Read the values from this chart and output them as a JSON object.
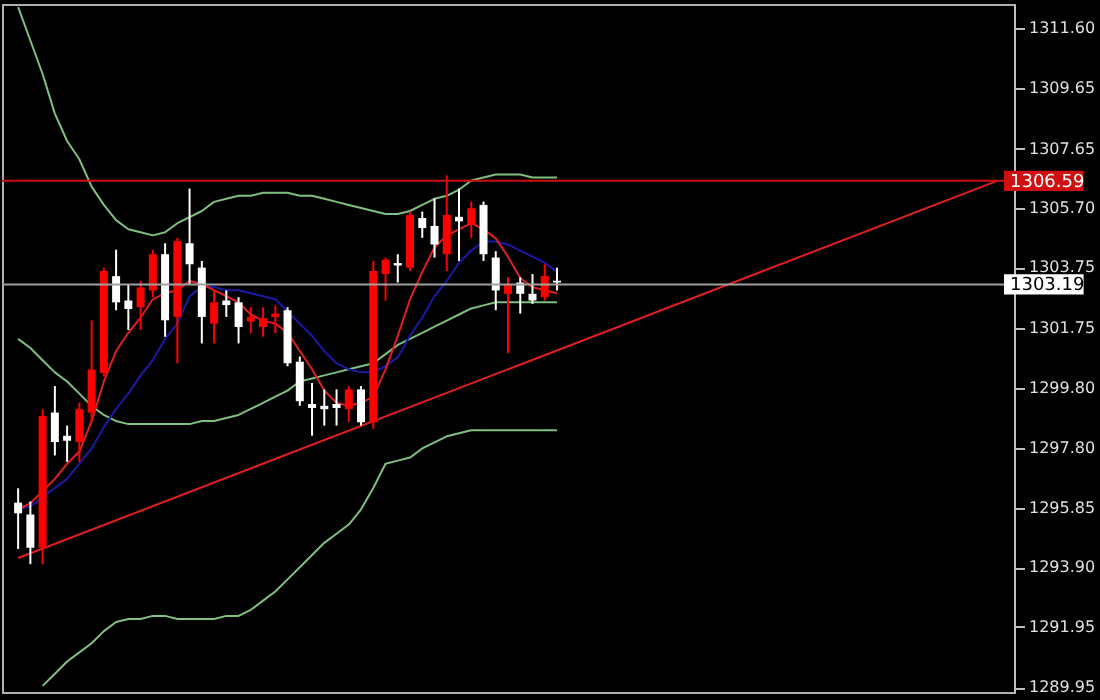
{
  "chart_data": {
    "type": "candlestick",
    "categories": [
      null,
      null,
      null,
      null,
      null,
      null,
      null,
      null,
      null,
      null,
      null,
      null,
      null,
      null,
      null,
      null,
      null,
      null,
      null,
      null,
      null,
      null,
      null,
      null,
      null,
      null,
      null,
      null,
      null,
      null,
      null,
      null,
      null,
      null,
      null,
      null,
      null,
      null,
      null,
      null,
      null,
      null,
      null,
      null,
      null,
      null,
      null,
      null,
      null,
      null,
      null,
      null,
      null,
      null,
      null,
      null,
      null,
      null,
      null,
      null,
      null,
      null,
      null,
      null,
      null,
      null,
      null,
      null,
      null,
      null,
      null,
      null,
      null,
      null,
      null,
      null,
      null,
      null,
      null,
      null,
      null
    ],
    "ohlc": [
      [
        1296.02,
        1296.49,
        1294.5,
        1295.67
      ],
      [
        1295.63,
        1296.06,
        1294.0,
        1294.54
      ],
      [
        1294.54,
        1299.09,
        1294.0,
        1298.87
      ],
      [
        1298.98,
        1299.85,
        1297.57,
        1298.01
      ],
      [
        1298.22,
        1298.55,
        1297.36,
        1298.05
      ],
      [
        1298.01,
        1299.31,
        1297.36,
        1299.09
      ],
      [
        1298.98,
        1302.01,
        1298.66,
        1300.39
      ],
      [
        1300.28,
        1303.74,
        1300.17,
        1303.63
      ],
      [
        1303.46,
        1304.33,
        1302.34,
        1302.6
      ],
      [
        1302.66,
        1303.2,
        1301.69,
        1302.38
      ],
      [
        1302.44,
        1303.31,
        1301.69,
        1303.09
      ],
      [
        1302.99,
        1304.33,
        1302.77,
        1304.18
      ],
      [
        1304.18,
        1304.54,
        1301.47,
        1302.01
      ],
      [
        1302.12,
        1304.72,
        1300.6,
        1304.61
      ],
      [
        1304.54,
        1306.34,
        1303.2,
        1303.85
      ],
      [
        1303.74,
        1303.96,
        1301.25,
        1302.12
      ],
      [
        1301.9,
        1302.99,
        1301.25,
        1302.6
      ],
      [
        1302.66,
        1302.99,
        1302.12,
        1302.51
      ],
      [
        1302.6,
        1302.77,
        1301.25,
        1301.79
      ],
      [
        1301.97,
        1302.44,
        1301.58,
        1302.12
      ],
      [
        1301.79,
        1302.44,
        1301.47,
        1302.08
      ],
      [
        1302.12,
        1302.49,
        1301.58,
        1302.23
      ],
      [
        1302.34,
        1302.44,
        1300.5,
        1300.6
      ],
      [
        1300.65,
        1300.82,
        1299.2,
        1299.35
      ],
      [
        1299.26,
        1299.95,
        1298.22,
        1299.13
      ],
      [
        1299.2,
        1299.74,
        1298.55,
        1299.09
      ],
      [
        1299.26,
        1299.74,
        1298.55,
        1299.13
      ],
      [
        1299.09,
        1299.85,
        1298.66,
        1299.74
      ],
      [
        1299.74,
        1299.85,
        1298.55,
        1298.66
      ],
      [
        1298.66,
        1303.96,
        1298.44,
        1303.63
      ],
      [
        1303.53,
        1304.07,
        1302.66,
        1304.0
      ],
      [
        1303.89,
        1304.18,
        1303.25,
        1303.81
      ],
      [
        1303.74,
        1305.58,
        1303.63,
        1305.47
      ],
      [
        1305.37,
        1305.58,
        1304.72,
        1305.04
      ],
      [
        1305.11,
        1306.02,
        1304.07,
        1304.5
      ],
      [
        1304.18,
        1306.77,
        1303.63,
        1305.47
      ],
      [
        1305.41,
        1306.34,
        1303.96,
        1305.26
      ],
      [
        1305.15,
        1305.91,
        1304.72,
        1305.69
      ],
      [
        1305.8,
        1305.91,
        1303.96,
        1304.18
      ],
      [
        1304.07,
        1304.28,
        1302.34,
        1302.99
      ],
      [
        1302.88,
        1303.42,
        1300.93,
        1303.2
      ],
      [
        1303.25,
        1303.42,
        1302.23,
        1302.88
      ],
      [
        1302.88,
        1303.53,
        1302.55,
        1302.66
      ],
      [
        1302.77,
        1303.85,
        1302.66,
        1303.46
      ],
      [
        1303.31,
        1303.74,
        1302.99,
        1303.25
      ],
      null,
      null,
      null,
      null,
      null,
      null,
      null,
      null,
      null,
      null,
      null,
      null,
      null,
      null,
      null,
      null,
      null,
      null,
      null,
      null,
      null,
      null,
      null,
      null,
      null,
      null,
      null,
      null,
      null,
      null,
      null,
      null,
      null,
      null,
      null,
      null
    ],
    "colors": [
      "#ffffff",
      "#ffffff",
      "#ff0000",
      "#ffffff",
      "#ffffff",
      "#ff0000",
      "#ff0000",
      "#ff0000",
      "#ffffff",
      "#ffffff",
      "#ff0000",
      "#ff0000",
      "#ffffff",
      "#ff0000",
      "#ffffff",
      "#ffffff",
      "#ff0000",
      "#ffffff",
      "#ffffff",
      "#ff0000",
      "#ff0000",
      "#ff0000",
      "#ffffff",
      "#ffffff",
      "#ffffff",
      "#ffffff",
      "#ffffff",
      "#ff0000",
      "#ffffff",
      "#ff0000",
      "#ff0000",
      "#ffffff",
      "#ff0000",
      "#ffffff",
      "#ffffff",
      "#ff0000",
      "#ffffff",
      "#ff0000",
      "#ffffff",
      "#ffffff",
      "#ff0000",
      "#ffffff",
      "#ffffff",
      "#ff0000",
      "#ffffff",
      null,
      null,
      null,
      null,
      null,
      null,
      null,
      null,
      null,
      null,
      null,
      null,
      null,
      null,
      null,
      null,
      null,
      null,
      null,
      null,
      null,
      null,
      null,
      null,
      null,
      null,
      null,
      null,
      null,
      null,
      null,
      null,
      null,
      null,
      null,
      null
    ],
    "series": [
      {
        "type": "line",
        "color": "#7fbf7f",
        "values": [
          1312.3,
          1311.2,
          1310.1,
          1308.8,
          1307.9,
          1307.3,
          1306.4,
          1305.8,
          1305.3,
          1305.0,
          1304.9,
          1304.8,
          1304.9,
          1305.2,
          1305.4,
          1305.6,
          1305.9,
          1306.0,
          1306.1,
          1306.1,
          1306.2,
          1306.2,
          1306.2,
          1306.1,
          1306.1,
          1306.0,
          1305.9,
          1305.8,
          1305.7,
          1305.6,
          1305.5,
          1305.5,
          1305.6,
          1305.8,
          1306.0,
          1306.1,
          1306.3,
          1306.6,
          1306.7,
          1306.8,
          1306.8,
          1306.8,
          1306.7,
          1306.7,
          1306.7,
          null,
          null,
          null,
          null,
          null,
          null,
          null,
          null,
          null,
          null,
          null,
          null,
          null,
          null,
          null,
          null,
          null,
          null,
          null,
          null,
          null,
          null,
          null,
          null,
          null,
          null,
          null,
          null,
          null,
          null,
          null,
          null,
          null,
          null,
          null,
          null
        ]
      },
      {
        "type": "line",
        "color": "#7fbf7f",
        "values": [
          1301.4,
          1301.1,
          1300.7,
          1300.3,
          1300.0,
          1299.6,
          1299.2,
          1298.9,
          1298.7,
          1298.6,
          1298.6,
          1298.6,
          1298.6,
          1298.6,
          1298.6,
          1298.7,
          1298.7,
          1298.8,
          1298.9,
          1299.1,
          1299.3,
          1299.5,
          1299.7,
          1300.0,
          1300.1,
          1300.2,
          1300.3,
          1300.4,
          1300.5,
          1300.6,
          1300.9,
          1301.2,
          1301.4,
          1301.6,
          1301.8,
          1302.0,
          1302.2,
          1302.4,
          1302.5,
          1302.6,
          1302.6,
          1302.6,
          1302.6,
          1302.6,
          1302.6,
          null,
          null,
          null,
          null,
          null,
          null,
          null,
          null,
          null,
          null,
          null,
          null,
          null,
          null,
          null,
          null,
          null,
          null,
          null,
          null,
          null,
          null,
          null,
          null,
          null,
          null,
          null,
          null,
          null,
          null,
          null,
          null,
          null,
          null,
          null,
          null
        ]
      },
      {
        "type": "line",
        "color": "#7fbf7f",
        "values": [
          null,
          null,
          1290.0,
          1290.4,
          1290.8,
          1291.1,
          1291.4,
          1291.8,
          1292.1,
          1292.2,
          1292.2,
          1292.3,
          1292.3,
          1292.2,
          1292.2,
          1292.2,
          1292.2,
          1292.3,
          1292.3,
          1292.5,
          1292.8,
          1293.1,
          1293.5,
          1293.9,
          1294.3,
          1294.7,
          1295.0,
          1295.3,
          1295.8,
          1296.5,
          1297.3,
          1297.4,
          1297.5,
          1297.8,
          1298.0,
          1298.2,
          1298.3,
          1298.4,
          1298.4,
          1298.4,
          1298.4,
          1298.4,
          1298.4,
          1298.4,
          1298.4,
          null,
          null,
          null,
          null,
          null,
          null,
          null,
          null,
          null,
          null,
          null,
          null,
          null,
          null,
          null,
          null,
          null,
          null,
          null,
          null,
          null,
          null,
          null,
          null,
          null,
          null,
          null,
          null,
          null,
          null,
          null,
          null,
          null,
          null,
          null,
          null
        ]
      },
      {
        "type": "line",
        "color": "#1a1aa6",
        "values": [
          1295.8,
          1295.9,
          1296.2,
          1296.5,
          1296.8,
          1297.3,
          1297.8,
          1298.5,
          1299.1,
          1299.6,
          1300.2,
          1300.7,
          1301.4,
          1301.9,
          1302.8,
          1303.1,
          1303.1,
          1303.0,
          1303.0,
          1302.9,
          1302.8,
          1302.7,
          1302.3,
          1301.9,
          1301.5,
          1301.0,
          1300.6,
          1300.4,
          1300.3,
          1300.3,
          1300.5,
          1300.8,
          1301.5,
          1302.1,
          1302.8,
          1303.3,
          1303.9,
          1304.3,
          1304.6,
          1304.6,
          1304.5,
          1304.3,
          1304.1,
          1303.9,
          1303.6,
          null,
          null,
          null,
          null,
          null,
          null,
          null,
          null,
          null,
          null,
          null,
          null,
          null,
          null,
          null,
          null,
          null,
          null,
          null,
          null,
          null,
          null,
          null,
          null,
          null,
          null,
          null,
          null,
          null,
          null,
          null,
          null,
          null,
          null,
          null,
          null
        ]
      },
      {
        "type": "line",
        "color": "#e02020",
        "values": [
          1295.8,
          1296.0,
          1296.4,
          1296.8,
          1297.3,
          1297.7,
          1298.7,
          1300.0,
          1301.0,
          1301.6,
          1302.1,
          1302.7,
          1302.9,
          1303.0,
          1303.3,
          1303.2,
          1303.0,
          1302.8,
          1302.6,
          1302.2,
          1302.0,
          1301.9,
          1301.6,
          1301.0,
          1300.4,
          1299.7,
          1299.3,
          1299.2,
          1299.3,
          1299.5,
          1300.4,
          1301.5,
          1302.7,
          1303.6,
          1304.4,
          1304.8,
          1305.0,
          1305.2,
          1305.0,
          1304.7,
          1304.1,
          1303.4,
          1303.1,
          1303.0,
          1302.9,
          null,
          null,
          null,
          null,
          null,
          null,
          null,
          null,
          null,
          null,
          null,
          null,
          null,
          null,
          null,
          null,
          null,
          null,
          null,
          null,
          null,
          null,
          null,
          null,
          null,
          null,
          null,
          null,
          null,
          null,
          null,
          null,
          null,
          null,
          null,
          null
        ]
      },
      {
        "type": "line",
        "color": "#e02020",
        "values": [
          1294.2,
          null,
          null,
          null,
          null,
          null,
          null,
          null,
          null,
          null,
          null,
          null,
          null,
          null,
          null,
          null,
          null,
          null,
          null,
          null,
          null,
          null,
          null,
          null,
          null,
          null,
          null,
          null,
          null,
          null,
          null,
          null,
          null,
          null,
          null,
          null,
          null,
          null,
          null,
          null,
          null,
          null,
          null,
          null,
          null,
          null,
          null,
          null,
          null,
          null,
          null,
          null,
          null,
          null,
          null,
          null,
          null,
          null,
          null,
          null,
          null,
          null,
          null,
          null,
          null,
          null,
          null,
          null,
          null,
          null,
          null,
          null,
          null,
          null,
          null,
          null,
          null,
          null,
          null,
          null,
          1306.6
        ]
      }
    ],
    "ylim": [
      1289.8,
      1312.4
    ],
    "yticks": [
      {
        "value": 1311.6,
        "label": "1311.60"
      },
      1309.65,
      1307.65,
      {
        "value": 1305.7,
        "label": "1305.70"
      },
      1303.75,
      1301.75,
      {
        "value": 1299.8,
        "label": "1299.80"
      },
      {
        "value": 1297.8,
        "label": "1297.80"
      },
      1295.85,
      {
        "value": 1293.9,
        "label": "1293.90"
      },
      1291.95,
      1289.95
    ],
    "ref_lines": [
      {
        "axis": "y",
        "value": 1306.59,
        "label": "1306.59",
        "color": "#d01010"
      },
      {
        "axis": "y",
        "value": 1303.19,
        "label": "1303.19",
        "color": "#a0a0a0"
      }
    ],
    "tick_labels": "y",
    "grid": false
  }
}
